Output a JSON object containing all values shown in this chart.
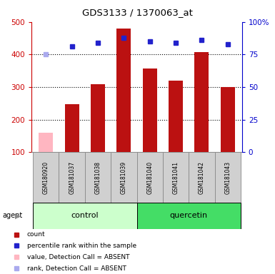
{
  "title": "GDS3133 / 1370063_at",
  "samples": [
    "GSM180920",
    "GSM181037",
    "GSM181038",
    "GSM181039",
    "GSM181040",
    "GSM181041",
    "GSM181042",
    "GSM181043"
  ],
  "bar_values": [
    160,
    248,
    308,
    480,
    357,
    320,
    408,
    300
  ],
  "bar_colors": [
    "#ffb6c1",
    "#bb1111",
    "#bb1111",
    "#bb1111",
    "#bb1111",
    "#bb1111",
    "#bb1111",
    "#bb1111"
  ],
  "rank_values": [
    75,
    81,
    84,
    88,
    85,
    84,
    86,
    83
  ],
  "rank_colors": [
    "#aaaaee",
    "#2222cc",
    "#2222cc",
    "#2222cc",
    "#2222cc",
    "#2222cc",
    "#2222cc",
    "#2222cc"
  ],
  "ylim_left": [
    100,
    500
  ],
  "ylim_right": [
    0,
    100
  ],
  "yticks_left": [
    100,
    200,
    300,
    400,
    500
  ],
  "yticks_right": [
    0,
    25,
    50,
    75,
    100
  ],
  "ytick_labels_right": [
    "0",
    "25",
    "50",
    "75",
    "100%"
  ],
  "grid_lines": [
    200,
    300,
    400
  ],
  "groups": [
    {
      "label": "control",
      "start": 0,
      "end": 3,
      "color": "#ccffcc"
    },
    {
      "label": "quercetin",
      "start": 4,
      "end": 7,
      "color": "#44dd66"
    }
  ],
  "legend_items": [
    {
      "label": "count",
      "color": "#bb1111"
    },
    {
      "label": "percentile rank within the sample",
      "color": "#2222cc"
    },
    {
      "label": "value, Detection Call = ABSENT",
      "color": "#ffb6c1"
    },
    {
      "label": "rank, Detection Call = ABSENT",
      "color": "#aaaaee"
    }
  ],
  "axis_left_color": "#cc0000",
  "axis_right_color": "#0000cc",
  "bar_width": 0.55
}
